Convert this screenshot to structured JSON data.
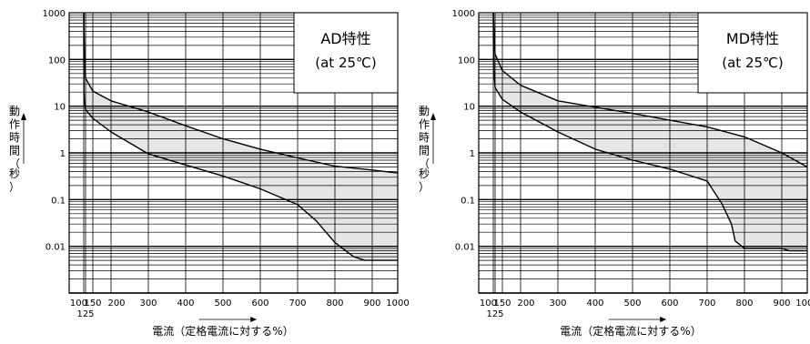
{
  "chart_data": [
    {
      "type": "area",
      "title": "AD特性",
      "subtitle": "(at 25℃)",
      "ylabel": "動作時間（秒）",
      "xlabel": "電流（定格電流に対する%）",
      "x_ticks": [
        "100",
        "125",
        "150",
        "200",
        "300",
        "400",
        "500",
        "600",
        "700",
        "800",
        "900",
        "1000"
      ],
      "y_ticks": [
        "1000",
        "100",
        "10",
        "1",
        "0.1",
        "0.01"
      ],
      "y_scale": "log",
      "ylim": [
        0.001,
        1000
      ],
      "grid": true,
      "series": [
        {
          "x": [
            100,
            103,
            110,
            125,
            150,
            200,
            300,
            400,
            500,
            600,
            700,
            800,
            900,
            1000
          ],
          "y": [
            1000,
            600,
            150,
            40,
            21,
            13,
            7.5,
            3.8,
            2.0,
            1.2,
            0.78,
            0.52,
            0.43,
            0.37
          ]
        },
        {
          "x": [
            100,
            101,
            103,
            110,
            125,
            150,
            200,
            300,
            400,
            500,
            600,
            700,
            750,
            800,
            850,
            880,
            900,
            1000
          ],
          "y": [
            1000,
            80,
            22,
            12,
            8.5,
            5.5,
            2.8,
            0.95,
            0.55,
            0.32,
            0.17,
            0.078,
            0.035,
            0.012,
            0.006,
            0.005,
            0.005,
            0.005
          ]
        }
      ]
    },
    {
      "type": "area",
      "title": "MD特性",
      "subtitle": "(at 25℃)",
      "ylabel": "動作時間（秒）",
      "xlabel": "電流（定格電流に対する%）",
      "x_ticks": [
        "100",
        "125",
        "150",
        "200",
        "300",
        "400",
        "500",
        "600",
        "700",
        "800",
        "900",
        "1000"
      ],
      "y_ticks": [
        "1000",
        "100",
        "10",
        "1",
        "0.1",
        "0.01"
      ],
      "y_scale": "log",
      "ylim": [
        0.001,
        1000
      ],
      "grid": true,
      "series": [
        {
          "x": [
            100,
            105,
            115,
            125,
            150,
            200,
            300,
            400,
            500,
            600,
            700,
            800,
            900,
            1000
          ],
          "y": [
            1000,
            700,
            250,
            130,
            58,
            28,
            13,
            9.5,
            7,
            5,
            3.6,
            2.2,
            1.0,
            0.5
          ]
        },
        {
          "x": [
            100,
            103,
            110,
            125,
            150,
            200,
            300,
            400,
            500,
            600,
            700,
            740,
            765,
            775,
            800,
            850,
            900,
            930,
            1000
          ],
          "y": [
            1000,
            200,
            50,
            25,
            14,
            7.5,
            2.8,
            1.2,
            0.7,
            0.45,
            0.25,
            0.08,
            0.03,
            0.013,
            0.009,
            0.009,
            0.009,
            0.008,
            0.008
          ]
        }
      ]
    }
  ]
}
